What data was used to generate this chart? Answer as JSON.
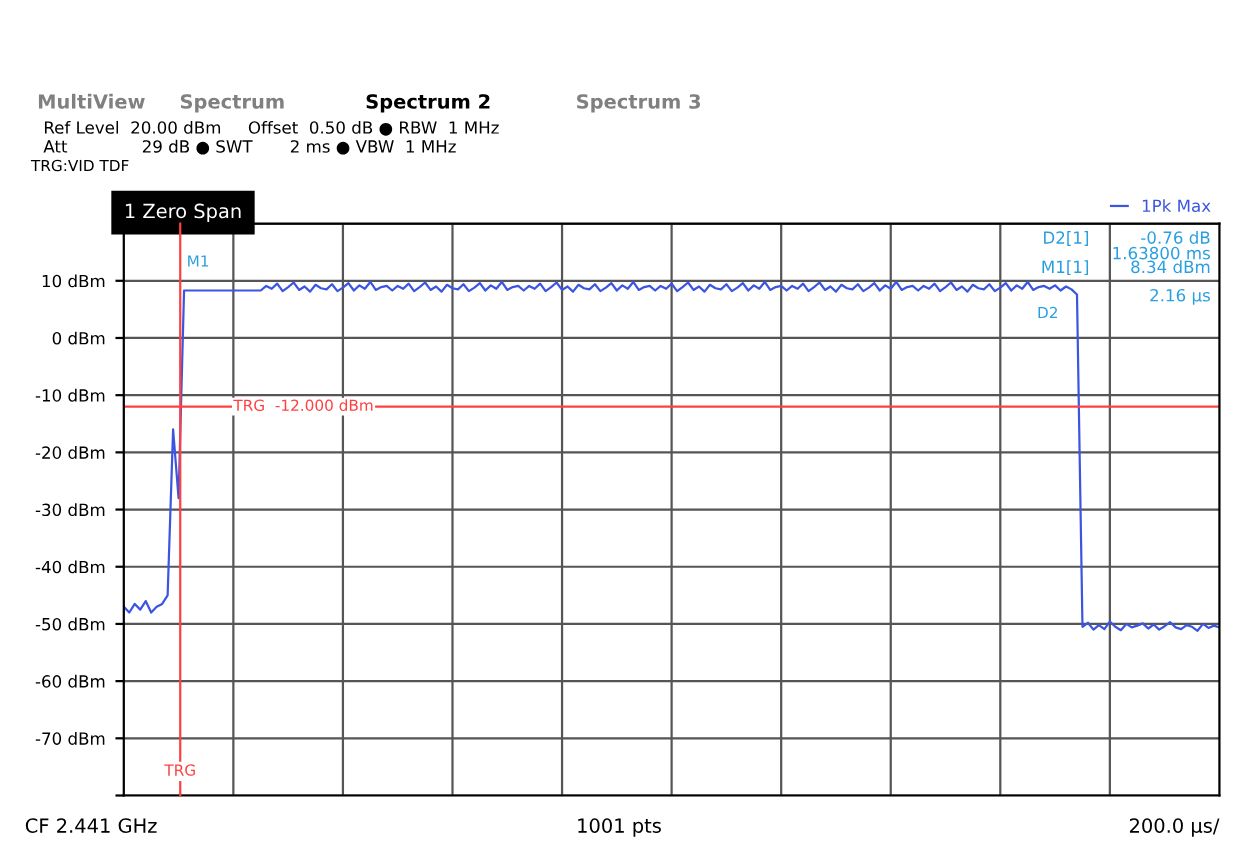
{
  "chart_data": {
    "type": "line",
    "title": "1 Zero Span",
    "categories": [
      null,
      null,
      null,
      null,
      null,
      null,
      null,
      null,
      null,
      null,
      null,
      null,
      null,
      null,
      null,
      null,
      null,
      null,
      null,
      null,
      null,
      null,
      null,
      null,
      null,
      null,
      null,
      null,
      null,
      null,
      null,
      null,
      null,
      null,
      null,
      null,
      null,
      null,
      null,
      null,
      null,
      null,
      null,
      null,
      null,
      null,
      null,
      null,
      null,
      null,
      null,
      null,
      null,
      null,
      null,
      null,
      null,
      null,
      null,
      null,
      null,
      null,
      null,
      null,
      null,
      null,
      null,
      null,
      null,
      null,
      null,
      null,
      null,
      null,
      null,
      null,
      null,
      null,
      null,
      null,
      null,
      null,
      null,
      null,
      null,
      null,
      null,
      null,
      null,
      null,
      null,
      null,
      null,
      null,
      null,
      null,
      null,
      null,
      null,
      null,
      null,
      null,
      null,
      null,
      null,
      null,
      null,
      null,
      null,
      null,
      null,
      null,
      null,
      null,
      null,
      null,
      null,
      null,
      null,
      null,
      null,
      null,
      null,
      null,
      null,
      null,
      null,
      null,
      null,
      null,
      null,
      null,
      null,
      null,
      null,
      null,
      null,
      null,
      null,
      null,
      null,
      null,
      null,
      null,
      null,
      null,
      null,
      null,
      null,
      null,
      null,
      null,
      null,
      null,
      null,
      null,
      null,
      null,
      null,
      null,
      null,
      null,
      null,
      null,
      null,
      null,
      null,
      null,
      null,
      null,
      null,
      null,
      null,
      null,
      null,
      null,
      null,
      null,
      null,
      null,
      null,
      null,
      null,
      null,
      null,
      null,
      null,
      null,
      null,
      null,
      null,
      null,
      null,
      null,
      null,
      null,
      null,
      null,
      null,
      null,
      null
    ],
    "series": [
      {
        "name": "1Pk Max",
        "color": "#3c55e0",
        "values": [
          -47,
          -48,
          -46.5,
          -47.5,
          -46,
          -48,
          -47,
          -46.5,
          -45,
          -16,
          -28,
          8.3,
          8.3,
          8.3,
          8.3,
          8.3,
          8.3,
          8.3,
          8.3,
          8.3,
          8.3,
          8.3,
          8.3,
          8.3,
          8.3,
          8.3,
          9.1,
          8.6,
          9.5,
          8.2,
          8.9,
          9.7,
          8.4,
          9,
          8.1,
          9.3,
          8.7,
          8.5,
          9.4,
          8.2,
          8.8,
          9.6,
          8.3,
          9.2,
          8.6,
          9.8,
          8.4,
          8.9,
          9.1,
          8.3,
          9.1,
          8.6,
          9.5,
          8.2,
          8.9,
          9.7,
          8.4,
          9,
          8.1,
          9.3,
          8.7,
          8.5,
          9.4,
          8.2,
          8.8,
          9.6,
          8.3,
          9.2,
          8.6,
          9.8,
          8.4,
          8.9,
          9.1,
          8.3,
          9.1,
          8.6,
          9.5,
          8.2,
          8.9,
          9.7,
          8.4,
          9,
          8.1,
          9.3,
          8.7,
          8.5,
          9.4,
          8.2,
          8.8,
          9.6,
          8.3,
          9.2,
          8.6,
          9.8,
          8.4,
          8.9,
          9.1,
          8.3,
          9.1,
          8.6,
          9.5,
          8.2,
          8.9,
          9.7,
          8.4,
          9,
          8.1,
          9.3,
          8.7,
          8.5,
          9.4,
          8.2,
          8.8,
          9.6,
          8.3,
          9.2,
          8.6,
          9.8,
          8.4,
          8.9,
          9.1,
          8.3,
          9.1,
          8.6,
          9.5,
          8.2,
          8.9,
          9.7,
          8.4,
          9,
          8.1,
          9.3,
          8.7,
          8.5,
          9.4,
          8.2,
          8.8,
          9.6,
          8.3,
          9.2,
          8.6,
          9.8,
          8.4,
          8.9,
          9.1,
          8.3,
          9.1,
          8.6,
          9.5,
          8.2,
          8.9,
          9.7,
          8.4,
          9,
          8.1,
          9.3,
          8.7,
          8.5,
          9.4,
          8.2,
          8.8,
          9.6,
          8.3,
          9.2,
          8.6,
          9.8,
          8.4,
          8.9,
          9.1,
          8.6,
          9.2,
          8.3,
          9,
          8.5,
          7.6,
          -50.5,
          -49.8,
          -51,
          -50.2,
          -50.9,
          -49.6,
          -50.5,
          -51.1,
          -50,
          -50.6,
          -50.3,
          -49.9,
          -50.8,
          -50.1,
          -51,
          -50.4,
          -49.7,
          -50.6,
          -50.9,
          -50.2,
          -50.5,
          -51.2,
          -50,
          -50.7,
          -50.3,
          -50.6
        ]
      }
    ],
    "ylim": [
      -80,
      20
    ],
    "yticks": [
      {
        "value": -80,
        "label": null
      },
      {
        "value": -70,
        "label": "-70 dBm"
      },
      {
        "value": -60,
        "label": "-60 dBm"
      },
      {
        "value": -50,
        "label": "-50 dBm"
      },
      {
        "value": -40,
        "label": "-40 dBm"
      },
      {
        "value": -30,
        "label": "-30 dBm"
      },
      {
        "value": -20,
        "label": "-20 dBm"
      },
      {
        "value": -10,
        "label": "-10 dBm"
      },
      {
        "value": 0,
        "label": "0 dBm"
      },
      {
        "value": 10,
        "label": "10 dBm"
      },
      {
        "value": 20,
        "label": null
      }
    ],
    "tick_labels": "y",
    "grid": true,
    "legend": "top right",
    "ref_lines": [
      {
        "axis": "y",
        "value": -12,
        "label": "TRG  -12.000 dBm",
        "color": "#ff4040"
      }
    ],
    "annotations": [
      "MultiView",
      "Spectrum",
      "Spectrum 2",
      "Spectrum 3",
      "Ref Level  20.00 dBm     Offset  0.50 dB ● RBW  1 MHz",
      "Att              29 dB ● SWT       2 ms ● VBW  1 MHz",
      "TRG:VID TDF",
      "D2[1]",
      "-0.76 dB",
      "1.63800 ms",
      "M1[1]",
      "8.34 dBm",
      "2.16 µs",
      "CF 2.441 GHz",
      "1001 pts",
      "200.0 µs/",
      "M1",
      "D2",
      "TRG"
    ]
  }
}
